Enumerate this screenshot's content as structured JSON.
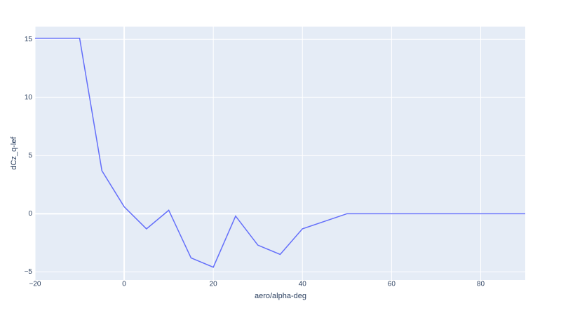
{
  "chart_data": {
    "type": "line",
    "x_label": "aero/alpha-deg",
    "y_label": "dCz_q-lef",
    "x": [
      -20,
      -10,
      -5,
      0,
      5,
      10,
      15,
      20,
      25,
      30,
      35,
      40,
      50,
      60,
      70,
      80,
      90
    ],
    "values": [
      15.1,
      15.1,
      3.7,
      0.6,
      -1.3,
      0.3,
      -3.8,
      -4.6,
      -0.2,
      -2.7,
      -3.5,
      -1.3,
      0,
      0,
      0,
      0,
      0
    ],
    "color": "#636efa",
    "xlim": [
      -20,
      90
    ],
    "ylim": [
      -5.7,
      16.1
    ],
    "xticks": [
      {
        "value": -20,
        "label": "−20"
      },
      0,
      20,
      40,
      60,
      80
    ],
    "yticks": [
      {
        "value": -5,
        "label": "−5"
      },
      0,
      5,
      10,
      15
    ],
    "grid": true
  }
}
